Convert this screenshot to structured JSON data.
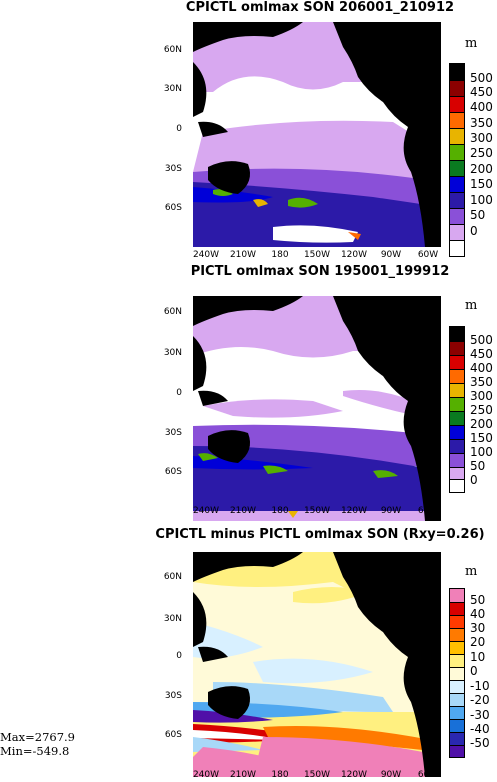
{
  "panels": [
    {
      "title": "CPICTL omlmax SON 206001_210912",
      "unit": "m",
      "colorbar": {
        "labels": [
          "500",
          "450",
          "400",
          "350",
          "300",
          "250",
          "200",
          "150",
          "100",
          "50",
          "0"
        ],
        "colors": [
          "#000000",
          "#8b0000",
          "#d80000",
          "#ff6a00",
          "#e8b400",
          "#55b000",
          "#0a7a20",
          "#0000d8",
          "#2c1aa8",
          "#8a50d8",
          "#d8a8f0",
          "#ffffff"
        ]
      }
    },
    {
      "title": "PICTL omlmax SON 195001_199912",
      "unit": "m",
      "colorbar": {
        "labels": [
          "500",
          "450",
          "400",
          "350",
          "300",
          "250",
          "200",
          "150",
          "100",
          "50",
          "0"
        ],
        "colors": [
          "#000000",
          "#8b0000",
          "#d80000",
          "#ff6a00",
          "#e8b400",
          "#55b000",
          "#0a7a20",
          "#0000d8",
          "#2c1aa8",
          "#8a50d8",
          "#d8a8f0",
          "#ffffff"
        ]
      }
    },
    {
      "title": "CPICTL minus PICTL omlmax SON (Rxy=0.26)",
      "unit": "m",
      "colorbar": {
        "labels": [
          "50",
          "40",
          "30",
          "20",
          "10",
          "0",
          "-10",
          "-20",
          "-30",
          "-40",
          "-50"
        ],
        "colors": [
          "#f080b8",
          "#d80000",
          "#ff3a00",
          "#ff7a00",
          "#ffc000",
          "#fff080",
          "#fffad8",
          "#d8f0ff",
          "#a8d8f8",
          "#50a8f0",
          "#1870d8",
          "#2a28b0",
          "#5010a8"
        ]
      }
    }
  ],
  "lat_labels": [
    "60N",
    "30N",
    "0",
    "30S",
    "60S"
  ],
  "lon_labels": [
    "240W",
    "210W",
    "180",
    "150W",
    "120W",
    "90W",
    "60W"
  ],
  "stats": {
    "max": "Max=2767.9",
    "min": "Min=-549.8"
  }
}
